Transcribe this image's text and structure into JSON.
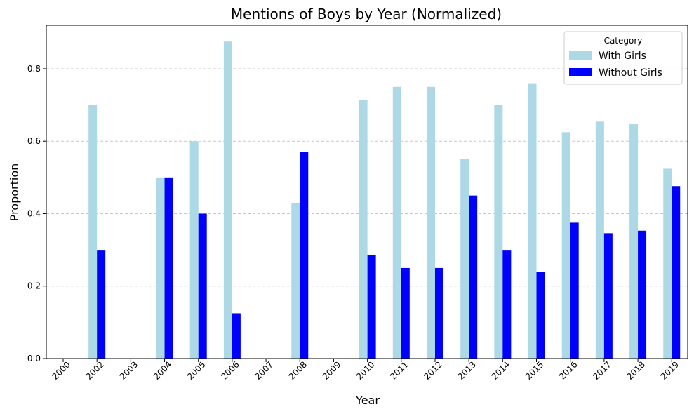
{
  "chart_data": {
    "type": "bar",
    "title": "Mentions of Boys by Year (Normalized)",
    "xlabel": "Year",
    "ylabel": "Proportion",
    "ylim": [
      0,
      0.92
    ],
    "yticks": [
      "0.0",
      "0.2",
      "0.4",
      "0.6",
      "0.8"
    ],
    "grid": "y-dashed",
    "legend": {
      "title": "Category",
      "placement": "top-right"
    },
    "categories": [
      "2000",
      "2002",
      "2003",
      "2004",
      "2005",
      "2006",
      "2007",
      "2008",
      "2009",
      "2010",
      "2011",
      "2012",
      "2013",
      "2014",
      "2015",
      "2016",
      "2017",
      "2018",
      "2019"
    ],
    "series": [
      {
        "name": "With Girls",
        "color": "#add8e6",
        "values": [
          0,
          0.7,
          0,
          0.5,
          0.6,
          0.875,
          0,
          0.43,
          0,
          0.714,
          0.75,
          0.75,
          0.55,
          0.7,
          0.76,
          0.625,
          0.654,
          0.647,
          0.524
        ]
      },
      {
        "name": "Without Girls",
        "color": "#0000ff",
        "values": [
          0,
          0.3,
          0,
          0.5,
          0.4,
          0.125,
          0,
          0.57,
          0,
          0.286,
          0.25,
          0.25,
          0.45,
          0.3,
          0.24,
          0.375,
          0.346,
          0.353,
          0.476
        ]
      }
    ]
  }
}
